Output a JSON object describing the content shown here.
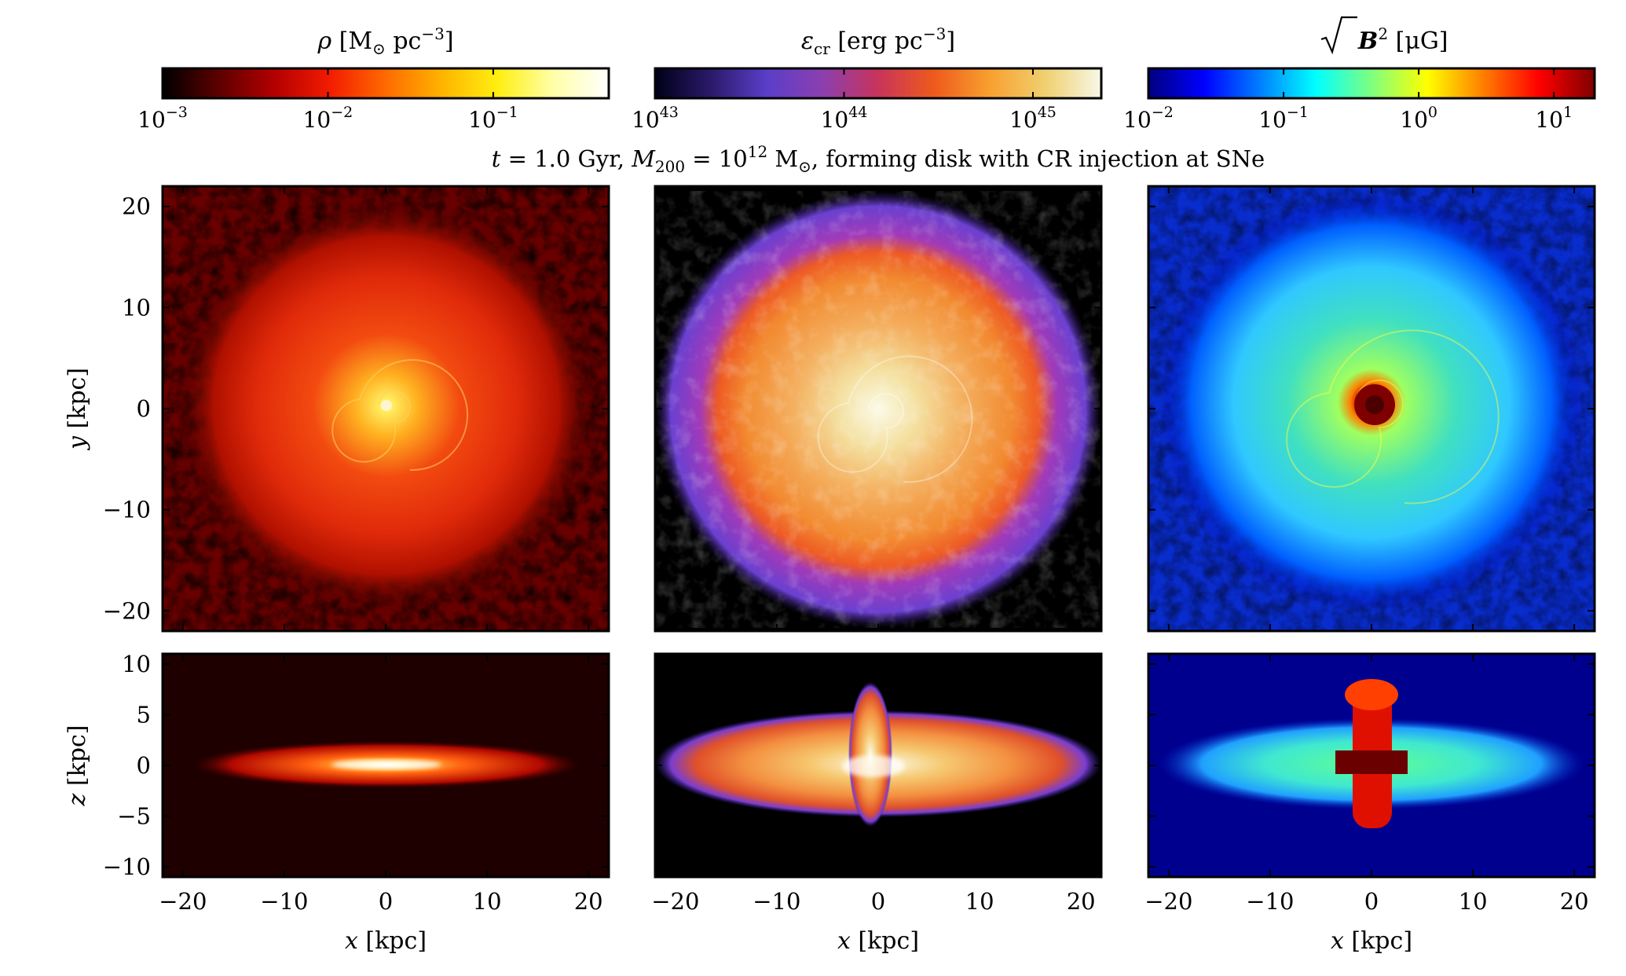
{
  "figure": {
    "title": {
      "t_var": "t",
      "t_rest": " = 1.0 Gyr, ",
      "m_var": "M",
      "m_sub": "200",
      "m_eq": " = 10",
      "m_exp": "12",
      "m_unit": " M",
      "m_unit_sub": "⊙",
      "rest": ", forming disk with CR injection at SNe"
    },
    "colorbars": [
      {
        "id": "density",
        "label_sym": "ρ",
        "label_unit_a": " [M",
        "label_unit_sub": "⊙",
        "label_unit_b": " pc",
        "label_unit_sup": "−3",
        "label_unit_c": "]",
        "colormap": "hot",
        "stops": [
          "#000000",
          "#5c0000",
          "#b30000",
          "#f21c00",
          "#ff6a00",
          "#ffb300",
          "#ffee10",
          "#ffffa8",
          "#ffffff"
        ],
        "scale": "log",
        "range": [
          0.001,
          0.5
        ],
        "ticks": [
          {
            "base": "10",
            "exp": "−3",
            "value": 0.001
          },
          {
            "base": "10",
            "exp": "−2",
            "value": 0.01
          },
          {
            "base": "10",
            "exp": "−1",
            "value": 0.1
          }
        ]
      },
      {
        "id": "cr-energy",
        "label_sym": "ε",
        "label_sub": "cr",
        "label_unit_a": " [erg pc",
        "label_unit_sup": "−3",
        "label_unit_c": "]",
        "colormap": "plasma-like",
        "stops": [
          "#000018",
          "#2a1a6a",
          "#5a3ec8",
          "#8c3fb0",
          "#c8345a",
          "#ee5a1c",
          "#f8a030",
          "#f0d070",
          "#f8f8e8"
        ],
        "scale": "log",
        "range": [
          1e+43,
          2.3e+45
        ],
        "ticks": [
          {
            "base": "10",
            "exp": "43",
            "value": 1e+43
          },
          {
            "base": "10",
            "exp": "44",
            "value": 1e+44
          },
          {
            "base": "10",
            "exp": "45",
            "value": 1e+45
          }
        ]
      },
      {
        "id": "b-field",
        "label_sym": "B",
        "label_sup": "2",
        "label_unit_a": " [μG]",
        "colormap": "jet",
        "stops": [
          "#00007f",
          "#0000ff",
          "#007fff",
          "#00ffff",
          "#7fff7f",
          "#ffff00",
          "#ff7f00",
          "#ff0000",
          "#7f0000"
        ],
        "scale": "log",
        "range": [
          0.01,
          20
        ],
        "ticks": [
          {
            "base": "10",
            "exp": "−2",
            "value": 0.01
          },
          {
            "base": "10",
            "exp": "−1",
            "value": 0.1
          },
          {
            "base": "10",
            "exp": "0",
            "value": 1
          },
          {
            "base": "10",
            "exp": "1",
            "value": 10
          }
        ]
      }
    ],
    "axes": {
      "x_label_var": "x",
      "x_label_unit": " [kpc]",
      "y_label_var": "y",
      "y_label_unit": " [kpc]",
      "z_label_var": "z",
      "z_label_unit": " [kpc]",
      "face_on_range": [
        -22,
        22
      ],
      "edge_on_z_range": [
        -11,
        11
      ],
      "x_ticks": [
        "−20",
        "−10",
        "0",
        "10",
        "20"
      ],
      "x_tick_values": [
        -20,
        -10,
        0,
        10,
        20
      ],
      "y_ticks": [
        "20",
        "10",
        "0",
        "−10",
        "−20"
      ],
      "y_tick_values": [
        20,
        10,
        0,
        -10,
        -20
      ],
      "z_ticks": [
        "10",
        "5",
        "0",
        "−5",
        "−10"
      ],
      "z_tick_values": [
        10,
        5,
        0,
        -5,
        -10
      ]
    },
    "panel_background": {
      "density": "#1e0000",
      "cr-energy": "#000000",
      "b-field": "#00008f"
    }
  }
}
